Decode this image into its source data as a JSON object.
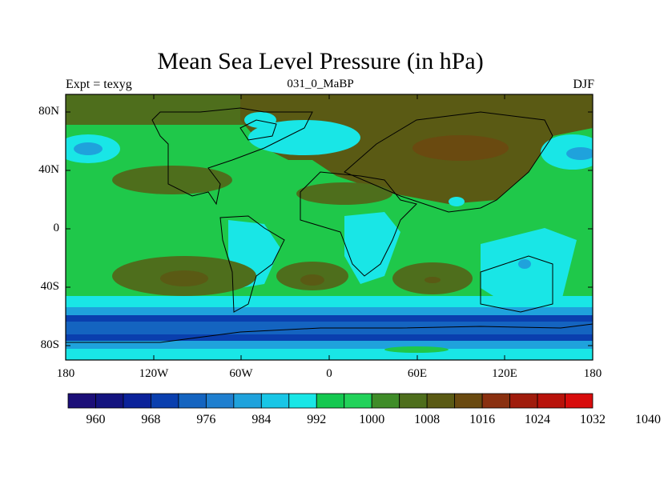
{
  "map": {
    "title": "Mean Sea Level Pressure (in hPa)",
    "subtitle": "031_0_MaBP",
    "left_label": "Expt = texyg",
    "right_label": "DJF",
    "lat_ticks": [
      "80N",
      "40N",
      "0",
      "40S",
      "80S"
    ],
    "lon_ticks": [
      "180",
      "120W",
      "60W",
      "0",
      "60E",
      "120E",
      "180"
    ]
  },
  "colorbar": {
    "labels": [
      "960",
      "968",
      "976",
      "984",
      "992",
      "1000",
      "1008",
      "1016",
      "1024",
      "1032",
      "1040"
    ],
    "colors": [
      "#1b0e78",
      "#13137f",
      "#0b229a",
      "#0a3fae",
      "#1464c0",
      "#1f7fcf",
      "#1fa2dc",
      "#19c6e6",
      "#19e6e6",
      "#14c850",
      "#22d25a",
      "#3f8c28",
      "#4e6e1c",
      "#5a5a14",
      "#6a4a10",
      "#8a3010",
      "#a01c0c",
      "#b8120a",
      "#d80c0c"
    ],
    "surface_colors": {
      "deep_low": "#1f5fc0",
      "low": "#1f8fd8",
      "mid_low": "#19d3e0",
      "cyan": "#1fe6e0",
      "green": "#1fc84a",
      "olive": "#4a8a2a",
      "brown": "#6b5a1a",
      "dark_brown": "#7a4a10"
    }
  }
}
